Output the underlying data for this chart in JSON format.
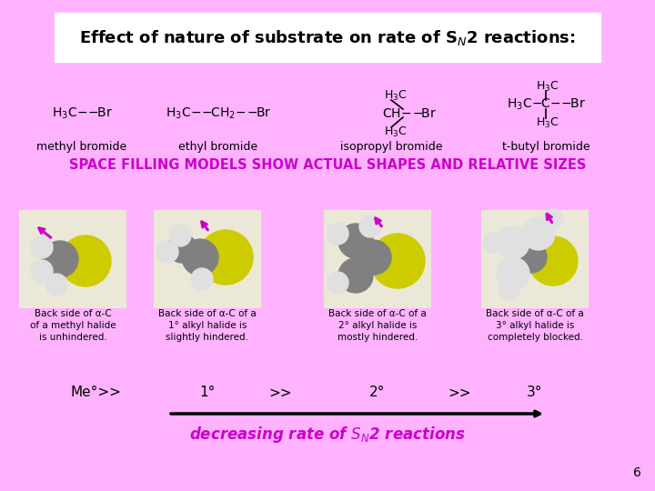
{
  "bg_color": "#ffb3ff",
  "white_box_color": "#ffffff",
  "section2_color": "#cc00cc",
  "section2_text": "SPACE FILLING MODELS SHOW ACTUAL SHAPES AND RELATIVE SIZES",
  "labels": [
    "methyl bromide",
    "ethyl bromide",
    "isopropyl bromide",
    "t-butyl bromide"
  ],
  "back_side_texts": [
    "Back side of α-C\nof a methyl halide\nis unhindered.",
    "Back side of α-C of a\n1° alkyl halide is\nslightly hindered.",
    "Back side of α-C of a\n2° alkyl halide is\nmostly hindered.",
    "Back side of α-C of a\n3° alkyl halide is\ncompletely blocked."
  ],
  "page_num": "6",
  "decreasing_color": "#cc00cc",
  "br_color": "#cccc00",
  "c_color": "#808080",
  "h_color": "#e0e0e0",
  "arrow_color": "#000000",
  "mol_bg_color": "#ece8d8"
}
